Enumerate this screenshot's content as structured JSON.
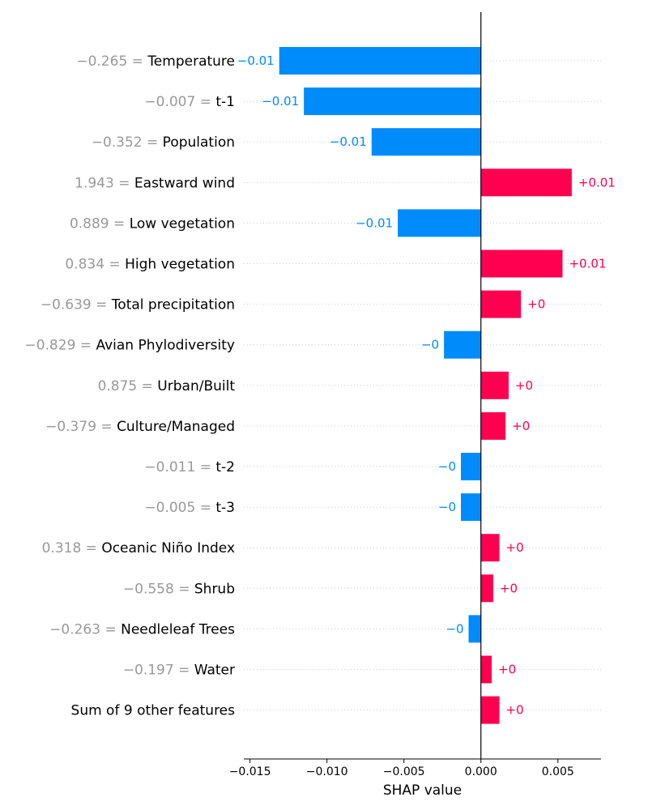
{
  "chart_data": {
    "type": "bar",
    "orientation": "horizontal",
    "xlabel": "SHAP value",
    "xlim": [
      -0.0154,
      0.0078
    ],
    "xticks": [
      "−0.015",
      "−0.010",
      "−0.005",
      "0.000",
      "0.005"
    ],
    "xtick_values": [
      -0.015,
      -0.01,
      -0.005,
      0.0,
      0.005
    ],
    "colors": {
      "positive": "#ff0051",
      "negative": "#008bfb",
      "feature_value": "#999999"
    },
    "features": [
      {
        "value_text": "−0.265 = ",
        "name": "Temperature",
        "shap": -0.0131,
        "label": "−0.01"
      },
      {
        "value_text": "−0.007 = ",
        "name": "t-1",
        "shap": -0.0115,
        "label": "−0.01"
      },
      {
        "value_text": "−0.352 = ",
        "name": "Population",
        "shap": -0.0071,
        "label": "−0.01"
      },
      {
        "value_text": "1.943 = ",
        "name": "Eastward wind",
        "shap": 0.0059,
        "label": "+0.01"
      },
      {
        "value_text": "0.889 = ",
        "name": "Low vegetation",
        "shap": -0.0054,
        "label": "−0.01"
      },
      {
        "value_text": "0.834 = ",
        "name": "High vegetation",
        "shap": 0.0053,
        "label": "+0.01"
      },
      {
        "value_text": "−0.639 = ",
        "name": "Total precipitation",
        "shap": 0.0026,
        "label": "+0"
      },
      {
        "value_text": "−0.829 = ",
        "name": "Avian Phylodiversity",
        "shap": -0.0024,
        "label": "−0"
      },
      {
        "value_text": "0.875 = ",
        "name": "Urban/Built",
        "shap": 0.0018,
        "label": "+0"
      },
      {
        "value_text": "−0.379 = ",
        "name": "Culture/Managed",
        "shap": 0.0016,
        "label": "+0"
      },
      {
        "value_text": "−0.011 = ",
        "name": "t-2",
        "shap": -0.0013,
        "label": "−0"
      },
      {
        "value_text": "−0.005 = ",
        "name": "t-3",
        "shap": -0.0013,
        "label": "−0"
      },
      {
        "value_text": "0.318 = ",
        "name": "Oceanic Niño Index",
        "shap": 0.0012,
        "label": "+0"
      },
      {
        "value_text": "−0.558 = ",
        "name": "Shrub",
        "shap": 0.0008,
        "label": "+0"
      },
      {
        "value_text": "−0.263 = ",
        "name": "Needleleaf Trees",
        "shap": -0.0008,
        "label": "−0"
      },
      {
        "value_text": "−0.197 = ",
        "name": "Water",
        "shap": 0.0007,
        "label": "+0"
      },
      {
        "value_text": "",
        "name": "Sum of 9 other features",
        "shap": 0.0012,
        "label": "+0"
      }
    ]
  }
}
